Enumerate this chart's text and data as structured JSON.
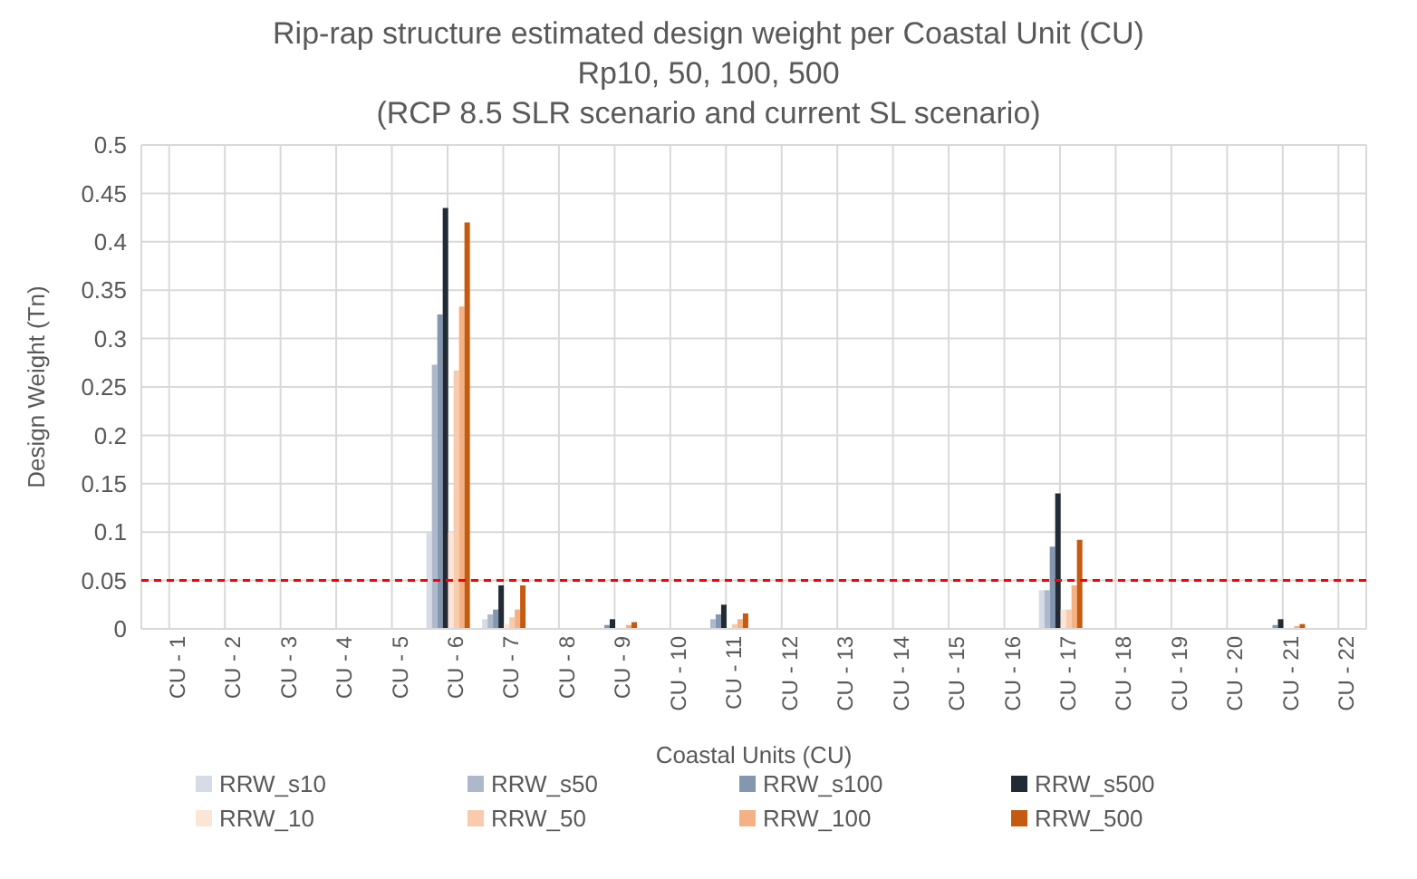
{
  "chart_data": {
    "type": "bar",
    "title": "Rip-rap structure estimated design weight per Coastal Unit (CU)",
    "subtitle": "Rp10, 50, 100, 500\n(RCP 8.5 SLR scenario and current SL scenario)",
    "xlabel": "Coastal Units (CU)",
    "ylabel": "Design Weight (Tn)",
    "categories": [
      "CU - 1",
      "CU - 2",
      "CU - 3",
      "CU - 4",
      "CU - 5",
      "CU - 6",
      "CU - 7",
      "CU - 8",
      "CU - 9",
      "CU - 10",
      "CU - 11",
      "CU - 12",
      "CU - 13",
      "CU - 14",
      "CU - 15",
      "CU - 16",
      "CU - 17",
      "CU - 18",
      "CU - 19",
      "CU - 20",
      "CU - 21",
      "CU - 22"
    ],
    "series": [
      {
        "name": "RRW_s10",
        "color": "#d6dce5",
        "values": [
          0,
          0,
          0,
          0,
          0,
          0.1,
          0.01,
          0,
          0,
          0,
          0,
          0,
          0,
          0,
          0,
          0,
          0.04,
          0,
          0,
          0,
          0,
          0
        ]
      },
      {
        "name": "RRW_s50",
        "color": "#adb9ca",
        "values": [
          0,
          0,
          0,
          0,
          0,
          0.273,
          0.015,
          0,
          null,
          0,
          0.01,
          0,
          0,
          0,
          0,
          0,
          0.04,
          0,
          0,
          0,
          null,
          0
        ]
      },
      {
        "name": "RRW_s100",
        "color": "#8497b0",
        "values": [
          0,
          0,
          0,
          0,
          0,
          0.325,
          0.02,
          0,
          0.004,
          0,
          0.015,
          0,
          0,
          0,
          0,
          0,
          0.085,
          0,
          0,
          0,
          0.004,
          0
        ]
      },
      {
        "name": "RRW_s500",
        "color": "#222a35",
        "values": [
          0,
          0,
          0,
          0,
          0,
          0.435,
          0.045,
          0,
          0.01,
          0,
          0.025,
          0,
          0,
          0,
          0,
          0,
          0.14,
          0,
          0,
          0,
          0.01,
          0
        ]
      },
      {
        "name": "RRW_10",
        "color": "#fbe5d6",
        "values": [
          0,
          0,
          0,
          0,
          0,
          0.1,
          0.005,
          0,
          null,
          0,
          null,
          0,
          0,
          0,
          0,
          0,
          0.02,
          0,
          0,
          0,
          null,
          0
        ]
      },
      {
        "name": "RRW_50",
        "color": "#f8cbad",
        "values": [
          0,
          0,
          0,
          0,
          0,
          0.267,
          0.012,
          0,
          null,
          0,
          0.005,
          0,
          0,
          0,
          0,
          0,
          0.02,
          0,
          0,
          0,
          null,
          0
        ]
      },
      {
        "name": "RRW_100",
        "color": "#f4b183",
        "values": [
          0,
          0,
          0,
          0,
          0,
          0.333,
          0.02,
          0,
          0.004,
          0,
          0.01,
          0,
          0,
          0,
          0,
          0,
          0.045,
          0,
          0,
          0,
          0.003,
          0
        ]
      },
      {
        "name": "RRW_500",
        "color": "#c55a11",
        "values": [
          0,
          0,
          0,
          0,
          0,
          0.42,
          0.045,
          0,
          0.007,
          0,
          0.016,
          0,
          0,
          0,
          0,
          0,
          0.092,
          0,
          0,
          0,
          0.005,
          0
        ]
      }
    ],
    "ylim": [
      0,
      0.5
    ],
    "yticks": [
      0,
      0.05,
      0.1,
      0.15,
      0.2,
      0.25,
      0.3,
      0.35,
      0.4,
      0.45,
      0.5
    ],
    "ref_lines": [
      {
        "axis": "y",
        "value": 0.05,
        "color": "#ff0000",
        "line_style": "dashed"
      }
    ],
    "grid": true,
    "legend": "bottom"
  }
}
